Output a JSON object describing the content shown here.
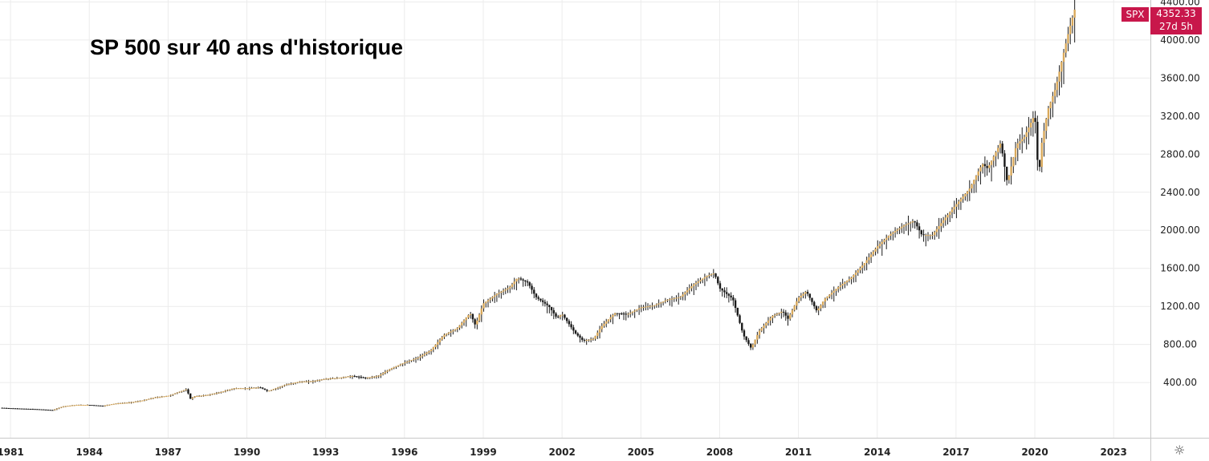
{
  "chart_data": {
    "type": "candlestick",
    "title": "SP 500 sur 40 ans d'historique",
    "ticker": "SPX",
    "last_price": "4352.33",
    "countdown": "27d 5h",
    "x_tick_labels": [
      "1981",
      "1984",
      "1987",
      "1990",
      "1993",
      "1996",
      "1999",
      "2002",
      "2005",
      "2008",
      "2011",
      "2014",
      "2017",
      "2020",
      "2023"
    ],
    "y_tick_labels": [
      "400.00",
      "800.00",
      "1200.00",
      "1600.00",
      "2000.00",
      "2400.00",
      "2800.00",
      "3200.00",
      "3600.00",
      "4000.00",
      "4400.00"
    ],
    "xlim": [
      1980.6,
      2024.4
    ],
    "ylim": [
      -180,
      4420
    ],
    "grid": true,
    "colors": {
      "up": "#d9a95b",
      "down": "#1a1a1a",
      "badge": "#c8174b",
      "grid": "#ececec"
    },
    "series": [
      {
        "x": [
          1980.6,
          1981.0,
          1981.5,
          1982.0,
          1982.6,
          1983.0,
          1983.5,
          1984.0,
          1984.5,
          1985.0,
          1985.5,
          1986.0,
          1986.5,
          1987.0,
          1987.4,
          1987.7,
          1987.85,
          1988.0,
          1988.5,
          1989.0,
          1989.5,
          1990.0,
          1990.5,
          1990.8,
          1991.0,
          1991.5,
          1992.0,
          1992.5,
          1993.0,
          1993.5,
          1994.0,
          1994.5,
          1995.0,
          1995.5,
          1996.0,
          1996.5,
          1997.0,
          1997.5,
          1998.0,
          1998.5,
          1998.7,
          1999.0,
          1999.5,
          2000.0,
          2000.3,
          2000.7,
          2001.0,
          2001.5,
          2001.8,
          2002.0,
          2002.5,
          2002.8,
          2003.2,
          2003.5,
          2004.0,
          2004.5,
          2005.0,
          2005.5,
          2006.0,
          2006.5,
          2007.0,
          2007.5,
          2007.8,
          2008.0,
          2008.5,
          2008.9,
          2009.2,
          2009.5,
          2010.0,
          2010.4,
          2010.6,
          2011.0,
          2011.3,
          2011.7,
          2012.0,
          2012.5,
          2013.0,
          2013.5,
          2014.0,
          2014.5,
          2015.0,
          2015.4,
          2015.7,
          2016.1,
          2016.5,
          2017.0,
          2017.5,
          2018.0,
          2018.2,
          2018.7,
          2018.95,
          2019.3,
          2019.6,
          2020.0,
          2020.15,
          2020.22,
          2020.5,
          2020.8,
          2021.0,
          2021.3,
          2021.55
        ],
        "y": [
          135,
          130,
          125,
          120,
          110,
          150,
          165,
          165,
          155,
          180,
          190,
          210,
          245,
          260,
          300,
          330,
          230,
          255,
          270,
          300,
          340,
          340,
          350,
          310,
          330,
          380,
          410,
          415,
          440,
          450,
          470,
          450,
          470,
          550,
          610,
          660,
          740,
          900,
          970,
          1130,
          1000,
          1230,
          1330,
          1400,
          1500,
          1450,
          1300,
          1200,
          1080,
          1120,
          920,
          840,
          860,
          990,
          1130,
          1120,
          1190,
          1210,
          1270,
          1300,
          1430,
          1520,
          1550,
          1390,
          1280,
          900,
          760,
          940,
          1100,
          1150,
          1070,
          1290,
          1360,
          1150,
          1280,
          1400,
          1500,
          1650,
          1830,
          1960,
          2050,
          2100,
          1950,
          1950,
          2100,
          2270,
          2430,
          2700,
          2650,
          2920,
          2500,
          2900,
          2980,
          3220,
          2500,
          2850,
          3270,
          3500,
          3750,
          4100,
          4352
        ]
      }
    ]
  }
}
